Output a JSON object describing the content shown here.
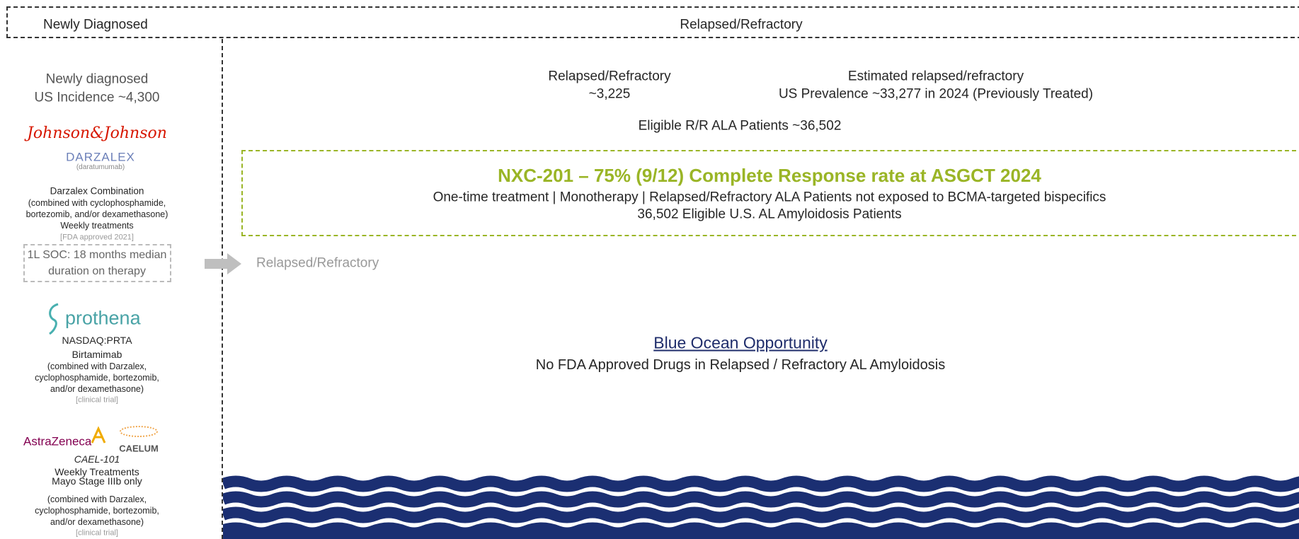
{
  "header": {
    "left": "Newly Diagnosed",
    "right": "Relapsed/Refractory"
  },
  "left_column": {
    "incidence": [
      "Newly diagnosed",
      "US Incidence ~4,300"
    ],
    "jnj_logo": "Johnson&Johnson",
    "darzalex_logo": "DARZALEX",
    "darzalex_generic": "(daratumumab)",
    "darzalex_lines": [
      "Darzalex Combination",
      "(combined with cyclophosphamide,",
      "bortezomib, and/or dexamethasone)",
      "Weekly treatments"
    ],
    "darzalex_status": "[FDA approved 2021]",
    "soc_box": [
      "1L SOC: 18 months median",
      "duration on therapy"
    ],
    "prothena_logo": "prothena",
    "prothena_lines": [
      "NASDAQ:PRTA",
      "Birtamimab"
    ],
    "prothena_combo": [
      "(combined with Darzalex,",
      "cyclophosphamide, bortezomib,",
      "and/or dexamethasone)"
    ],
    "prothena_status": "[clinical trial]",
    "az_logo": "AstraZeneca",
    "caelum_logo": "CAELUM",
    "cael_name": "CAEL-101",
    "cael_lines": [
      "Weekly Treatments",
      "Mayo Stage IIIb only"
    ],
    "cael_combo": [
      "(combined with Darzalex,",
      "cyclophosphamide, bortezomib,",
      "and/or dexamethasone)"
    ],
    "cael_status": "[clinical trial]"
  },
  "arrow_label": "Relapsed/Refractory",
  "right_column": {
    "rr": [
      "Relapsed/Refractory",
      "~3,225"
    ],
    "prevalence": [
      "Estimated relapsed/refractory",
      "US Prevalence ~33,277 in 2024 (Previously Treated)"
    ],
    "eligible": "Eligible R/R ALA Patients ~36,502",
    "highlight": {
      "title": "NXC-201 – 75% (9/12) Complete Response rate at ASGCT 2024",
      "lines": [
        "One-time treatment | Monotherapy | Relapsed/Refractory ALA Patients not exposed to BCMA-targeted bispecifics",
        "36,502 Eligible U.S. AL Amyloidosis Patients"
      ]
    },
    "opportunity": {
      "title": "Blue Ocean Opportunity",
      "subtitle": "No FDA Approved Drugs in Relapsed / Refractory AL Amyloidosis"
    }
  }
}
